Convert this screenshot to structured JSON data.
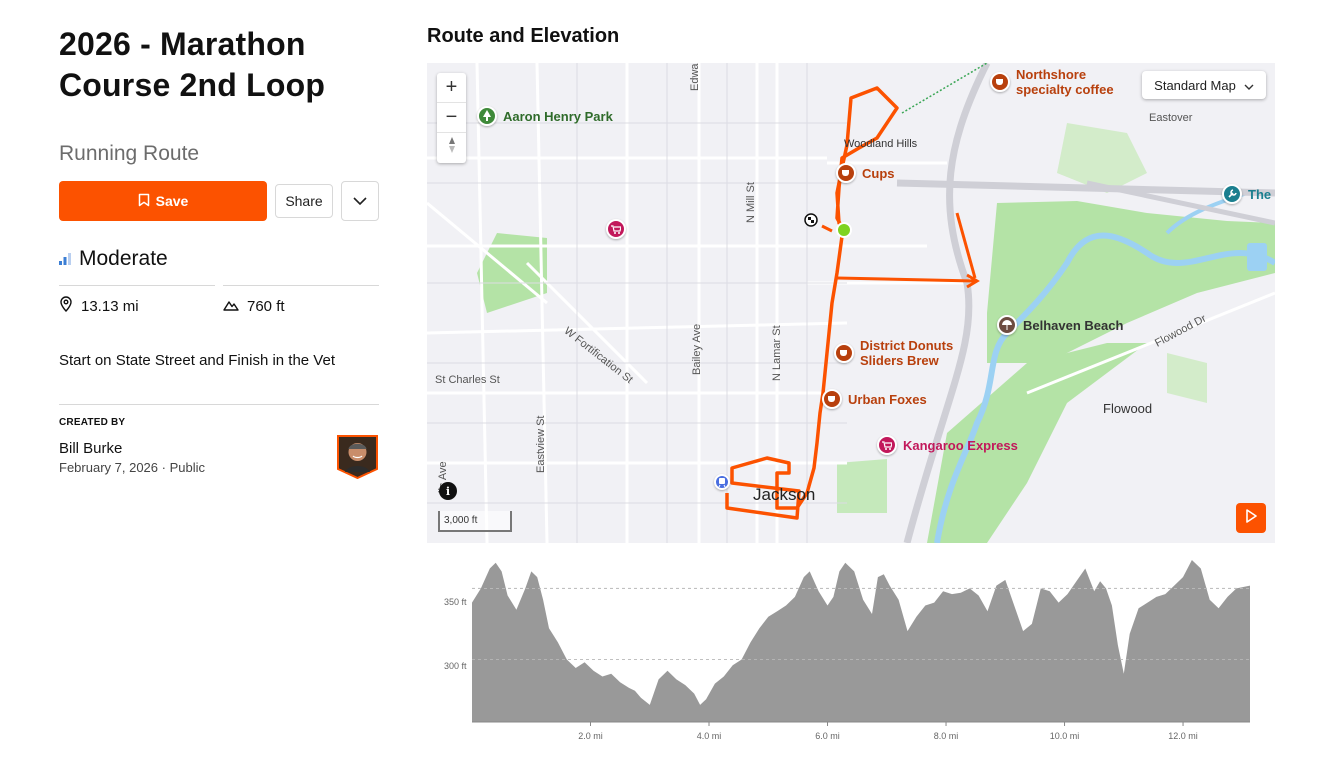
{
  "route": {
    "title": "2026 - Marathon Course 2nd Loop",
    "type": "Running Route",
    "save_label": "Save",
    "share_label": "Share",
    "difficulty": "Moderate",
    "distance": "13.13 mi",
    "elevation_gain": "760 ft",
    "description": "Start on State Street and Finish in the Vet"
  },
  "creator": {
    "heading": "CREATED BY",
    "name": "Bill Burke",
    "date": "February 7, 2026",
    "visibility": "Public"
  },
  "map": {
    "section_title": "Route and Elevation",
    "map_type": "Standard Map",
    "scale_label": "3,000 ft",
    "zoom_in": "+",
    "zoom_out": "−",
    "info": "i",
    "city": "Jackson",
    "pois": [
      {
        "label": "Aaron Henry Park",
        "kind": "park"
      },
      {
        "label": "Northshore specialty coffee",
        "kind": "cafe"
      },
      {
        "label": "Cups",
        "kind": "cafe"
      },
      {
        "label": "District Donuts Sliders Brew",
        "kind": "cafe"
      },
      {
        "label": "Urban Foxes",
        "kind": "cafe"
      },
      {
        "label": "Kangaroo Express",
        "kind": "shop"
      },
      {
        "label": "Belhaven Beach",
        "kind": "beach"
      },
      {
        "label": "The",
        "kind": "service"
      }
    ],
    "streets": [
      "Woodland Hills",
      "Eastover",
      "N Mill St",
      "Edwar",
      "W Fortification St",
      "Bailey Ave",
      "N Lamar St",
      "St Charles St",
      "Eastview St",
      "lis Ave",
      "Flowood Dr",
      "Flowood"
    ],
    "accent_color": "#fc5200"
  },
  "elevation": {
    "y_ticks": [
      "350 ft",
      "300 ft"
    ],
    "x_ticks": [
      "2.0 mi",
      "4.0 mi",
      "6.0 mi",
      "8.0 mi",
      "10.0 mi",
      "12.0 mi"
    ]
  },
  "chart_data": {
    "type": "area",
    "title": "",
    "xlabel": "",
    "ylabel": "",
    "xlim": [
      0,
      13.13
    ],
    "ylim": [
      256,
      370
    ],
    "x": [
      0.0,
      0.15,
      0.3,
      0.4,
      0.5,
      0.6,
      0.75,
      0.9,
      1.0,
      1.1,
      1.2,
      1.3,
      1.45,
      1.6,
      1.75,
      1.9,
      2.05,
      2.2,
      2.35,
      2.5,
      2.65,
      2.75,
      2.85,
      3.0,
      3.15,
      3.3,
      3.45,
      3.6,
      3.75,
      3.85,
      3.95,
      4.1,
      4.25,
      4.4,
      4.55,
      4.7,
      4.85,
      5.0,
      5.15,
      5.3,
      5.45,
      5.6,
      5.7,
      5.85,
      6.0,
      6.1,
      6.2,
      6.3,
      6.45,
      6.6,
      6.75,
      6.85,
      6.95,
      7.05,
      7.2,
      7.35,
      7.5,
      7.65,
      7.8,
      7.95,
      8.1,
      8.25,
      8.4,
      8.55,
      8.7,
      8.85,
      9.0,
      9.15,
      9.3,
      9.45,
      9.6,
      9.75,
      9.9,
      10.05,
      10.2,
      10.35,
      10.5,
      10.6,
      10.7,
      10.8,
      10.9,
      11.0,
      11.1,
      11.25,
      11.4,
      11.55,
      11.7,
      11.85,
      12.0,
      12.15,
      12.3,
      12.45,
      12.6,
      12.75,
      12.9,
      13.13
    ],
    "y": [
      340,
      350,
      364,
      368,
      362,
      345,
      335,
      350,
      362,
      358,
      342,
      322,
      312,
      300,
      294,
      298,
      292,
      288,
      290,
      284,
      280,
      278,
      273,
      268,
      286,
      292,
      286,
      282,
      276,
      268,
      272,
      283,
      288,
      296,
      300,
      312,
      322,
      330,
      334,
      338,
      344,
      358,
      362,
      348,
      338,
      344,
      362,
      368,
      362,
      342,
      332,
      358,
      360,
      352,
      342,
      320,
      330,
      338,
      340,
      348,
      346,
      347,
      350,
      345,
      334,
      352,
      356,
      338,
      320,
      325,
      350,
      348,
      340,
      346,
      355,
      364,
      348,
      355,
      350,
      338,
      310,
      290,
      318,
      336,
      340,
      344,
      346,
      352,
      358,
      370,
      364,
      342,
      336,
      344,
      350,
      352
    ],
    "y_tick_values": [
      350,
      300
    ],
    "x_tick_values": [
      2.0,
      4.0,
      6.0,
      8.0,
      10.0,
      12.0
    ]
  }
}
